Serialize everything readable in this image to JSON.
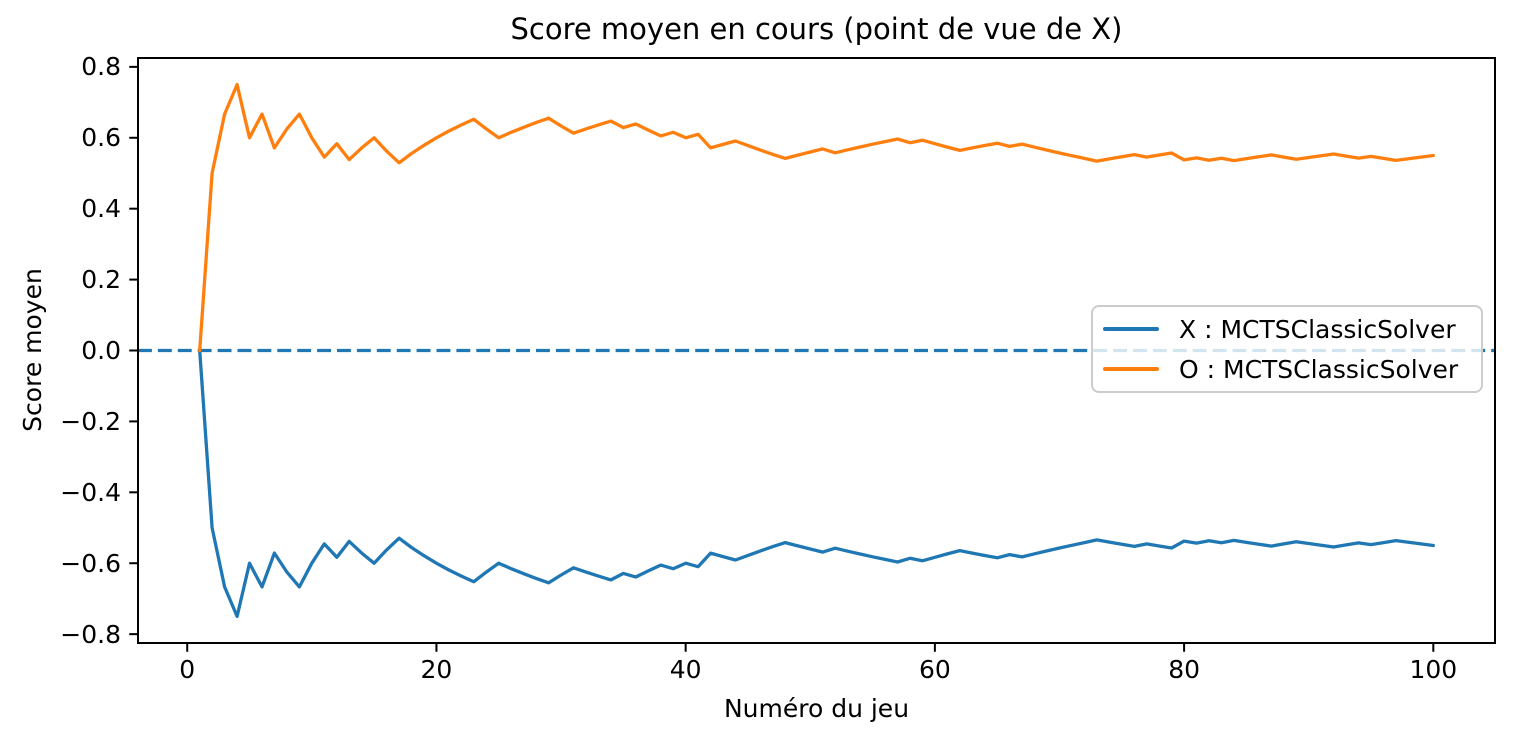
{
  "figure": {
    "title": "Score moyen en cours (point de vue de X)",
    "xlabel": "Numéro du jeu",
    "ylabel": "Score moyen"
  },
  "legend": {
    "position": "center right",
    "items": [
      {
        "label": "X : MCTSClassicSolver",
        "color": "#1f77b4"
      },
      {
        "label": "O : MCTSClassicSolver",
        "color": "#ff7f0e"
      }
    ]
  },
  "colors": {
    "series_x": "#1f77b4",
    "series_o": "#ff7f0e",
    "zero_line": "#1f77b4",
    "axes": "#000000",
    "legend_edge": "#cccccc",
    "background": "#ffffff"
  },
  "chart_data": {
    "type": "line",
    "title": "Score moyen en cours (point de vue de X)",
    "xlabel": "Numéro du jeu",
    "ylabel": "Score moyen",
    "grid": false,
    "legend_position": "center right",
    "xlim": [
      -3.95,
      104.95
    ],
    "ylim": [
      -0.825,
      0.825
    ],
    "x_ticks": [
      {
        "v": 0,
        "label": "0"
      },
      {
        "v": 20,
        "label": "20"
      },
      {
        "v": 40,
        "label": "40"
      },
      {
        "v": 60,
        "label": "60"
      },
      {
        "v": 80,
        "label": "80"
      },
      {
        "v": 100,
        "label": "100"
      }
    ],
    "y_ticks": [
      {
        "v": 0.8,
        "label": "0.8"
      },
      {
        "v": 0.6,
        "label": "0.6"
      },
      {
        "v": 0.4,
        "label": "0.4"
      },
      {
        "v": 0.2,
        "label": "0.2"
      },
      {
        "v": 0.0,
        "label": "0.0"
      },
      {
        "v": -0.2,
        "label": "−0.2"
      },
      {
        "v": -0.4,
        "label": "−0.4"
      },
      {
        "v": -0.6,
        "label": "−0.6"
      },
      {
        "v": -0.8,
        "label": "−0.8"
      }
    ],
    "zero_line": {
      "y": 0,
      "style": "dashed",
      "color": "#1f77b4"
    },
    "x": [
      1,
      2,
      3,
      4,
      5,
      6,
      7,
      8,
      9,
      10,
      11,
      12,
      13,
      14,
      15,
      16,
      17,
      18,
      19,
      20,
      21,
      22,
      23,
      24,
      25,
      26,
      27,
      28,
      29,
      30,
      31,
      32,
      33,
      34,
      35,
      36,
      37,
      38,
      39,
      40,
      41,
      42,
      43,
      44,
      45,
      46,
      47,
      48,
      49,
      50,
      51,
      52,
      53,
      54,
      55,
      56,
      57,
      58,
      59,
      60,
      61,
      62,
      63,
      64,
      65,
      66,
      67,
      68,
      69,
      70,
      71,
      72,
      73,
      74,
      75,
      76,
      77,
      78,
      79,
      80,
      81,
      82,
      83,
      84,
      85,
      86,
      87,
      88,
      89,
      90,
      91,
      92,
      93,
      94,
      95,
      96,
      97,
      98,
      99,
      100
    ],
    "series": [
      {
        "name": "X : MCTSClassicSolver",
        "color": "#1f77b4",
        "values": [
          0.0,
          -0.5,
          -0.6667,
          -0.75,
          -0.6,
          -0.6667,
          -0.5714,
          -0.625,
          -0.6667,
          -0.6,
          -0.5455,
          -0.5833,
          -0.5385,
          -0.5714,
          -0.6,
          -0.5625,
          -0.5294,
          -0.5556,
          -0.5789,
          -0.6,
          -0.619,
          -0.6364,
          -0.6522,
          -0.625,
          -0.6,
          -0.6154,
          -0.6296,
          -0.6429,
          -0.6552,
          -0.6333,
          -0.6129,
          -0.625,
          -0.6364,
          -0.6471,
          -0.6286,
          -0.6389,
          -0.6216,
          -0.6053,
          -0.6154,
          -0.6,
          -0.6098,
          -0.5714,
          -0.5814,
          -0.5909,
          -0.5778,
          -0.5652,
          -0.5532,
          -0.5417,
          -0.551,
          -0.56,
          -0.5686,
          -0.5577,
          -0.566,
          -0.5741,
          -0.5818,
          -0.5893,
          -0.5965,
          -0.5862,
          -0.5932,
          -0.5833,
          -0.5738,
          -0.5645,
          -0.5714,
          -0.5781,
          -0.5846,
          -0.5758,
          -0.5821,
          -0.5735,
          -0.5652,
          -0.5571,
          -0.5493,
          -0.5417,
          -0.5342,
          -0.5405,
          -0.5467,
          -0.5526,
          -0.5455,
          -0.5513,
          -0.557,
          -0.5375,
          -0.5432,
          -0.5366,
          -0.5422,
          -0.5357,
          -0.5412,
          -0.5465,
          -0.5517,
          -0.5455,
          -0.5393,
          -0.5444,
          -0.5495,
          -0.5543,
          -0.5484,
          -0.5426,
          -0.5474,
          -0.5417,
          -0.5361,
          -0.5408,
          -0.5455,
          -0.55
        ]
      },
      {
        "name": "O : MCTSClassicSolver",
        "color": "#ff7f0e",
        "values": [
          0.0,
          0.5,
          0.6667,
          0.75,
          0.6,
          0.6667,
          0.5714,
          0.625,
          0.6667,
          0.6,
          0.5455,
          0.5833,
          0.5385,
          0.5714,
          0.6,
          0.5625,
          0.5294,
          0.5556,
          0.5789,
          0.6,
          0.619,
          0.6364,
          0.6522,
          0.625,
          0.6,
          0.6154,
          0.6296,
          0.6429,
          0.6552,
          0.6333,
          0.6129,
          0.625,
          0.6364,
          0.6471,
          0.6286,
          0.6389,
          0.6216,
          0.6053,
          0.6154,
          0.6,
          0.6098,
          0.5714,
          0.5814,
          0.5909,
          0.5778,
          0.5652,
          0.5532,
          0.5417,
          0.551,
          0.56,
          0.5686,
          0.5577,
          0.566,
          0.5741,
          0.5818,
          0.5893,
          0.5965,
          0.5862,
          0.5932,
          0.5833,
          0.5738,
          0.5645,
          0.5714,
          0.5781,
          0.5846,
          0.5758,
          0.5821,
          0.5735,
          0.5652,
          0.5571,
          0.5493,
          0.5417,
          0.5342,
          0.5405,
          0.5467,
          0.5526,
          0.5455,
          0.5513,
          0.557,
          0.5375,
          0.5432,
          0.5366,
          0.5422,
          0.5357,
          0.5412,
          0.5465,
          0.5517,
          0.5455,
          0.5393,
          0.5444,
          0.5495,
          0.5543,
          0.5484,
          0.5426,
          0.5474,
          0.5417,
          0.5361,
          0.5408,
          0.5455,
          0.55
        ]
      }
    ]
  }
}
